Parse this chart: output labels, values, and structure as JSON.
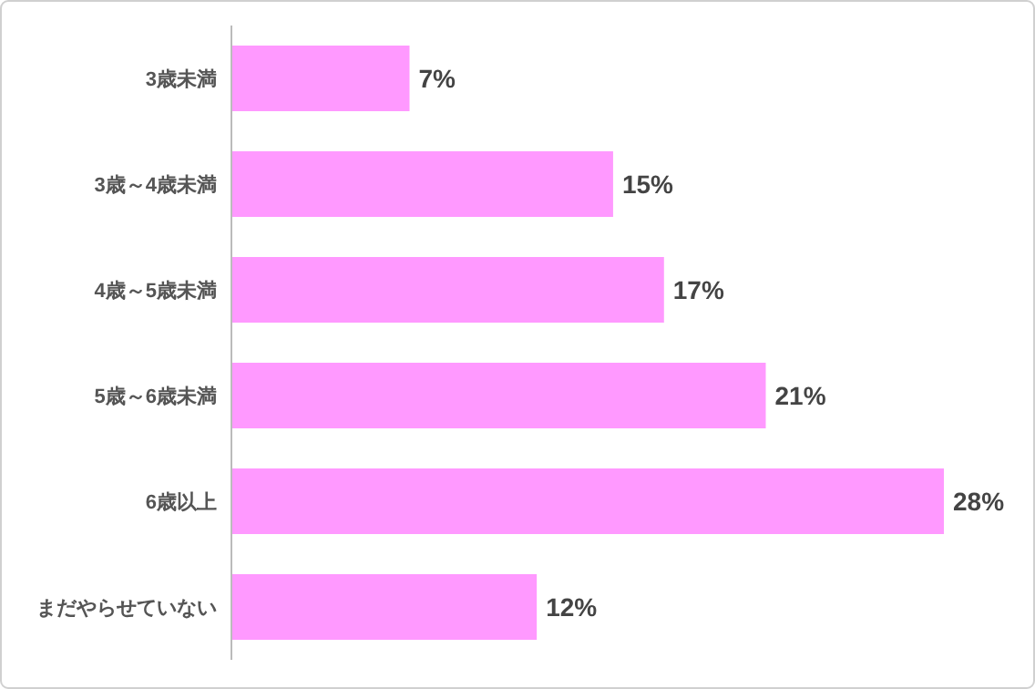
{
  "chart_data": {
    "type": "bar",
    "orientation": "horizontal",
    "categories": [
      "3歳未満",
      "3歳～4歳未満",
      "4歳～5歳未満",
      "5歳～6歳未満",
      "6歳以上",
      "まだやらせていない"
    ],
    "values": [
      7,
      15,
      17,
      21,
      28,
      12
    ],
    "value_labels": [
      "7%",
      "15%",
      "17%",
      "21%",
      "28%",
      "12%"
    ],
    "color": "#ff99ff"
  }
}
